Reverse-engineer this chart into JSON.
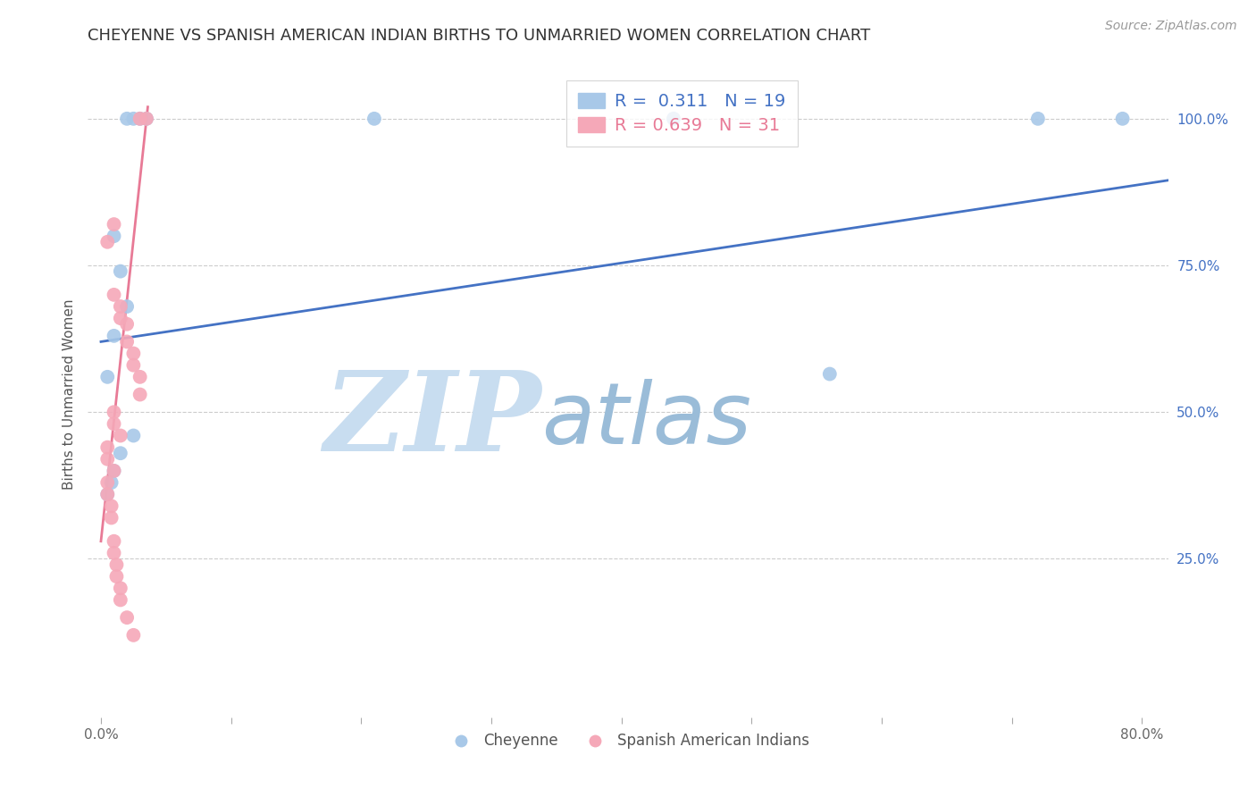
{
  "title": "CHEYENNE VS SPANISH AMERICAN INDIAN BIRTHS TO UNMARRIED WOMEN CORRELATION CHART",
  "source": "Source: ZipAtlas.com",
  "ylabel": "Births to Unmarried Women",
  "x_ticks": [
    0.0,
    0.1,
    0.2,
    0.3,
    0.4,
    0.5,
    0.6,
    0.7,
    0.8
  ],
  "x_tick_labels": [
    "0.0%",
    "",
    "",
    "",
    "",
    "",
    "",
    "",
    "80.0%"
  ],
  "y_ticks_right": [
    0.0,
    0.25,
    0.5,
    0.75,
    1.0
  ],
  "y_tick_labels_right": [
    "",
    "25.0%",
    "50.0%",
    "75.0%",
    "100.0%"
  ],
  "xlim": [
    -0.01,
    0.82
  ],
  "ylim": [
    -0.02,
    1.08
  ],
  "cheyenne_x": [
    0.02,
    0.025,
    0.03,
    0.035,
    0.21,
    0.44,
    0.72,
    0.785,
    0.01,
    0.015,
    0.02,
    0.01,
    0.005,
    0.56,
    0.008,
    0.005,
    0.01,
    0.015,
    0.025
  ],
  "cheyenne_y": [
    1.0,
    1.0,
    1.0,
    1.0,
    1.0,
    1.0,
    1.0,
    1.0,
    0.8,
    0.74,
    0.68,
    0.63,
    0.56,
    0.565,
    0.38,
    0.36,
    0.4,
    0.43,
    0.46
  ],
  "spanish_x": [
    0.03,
    0.035,
    0.01,
    0.005,
    0.01,
    0.015,
    0.015,
    0.02,
    0.02,
    0.025,
    0.025,
    0.03,
    0.03,
    0.01,
    0.01,
    0.015,
    0.005,
    0.005,
    0.01,
    0.005,
    0.005,
    0.008,
    0.008,
    0.01,
    0.01,
    0.012,
    0.012,
    0.015,
    0.015,
    0.02,
    0.025
  ],
  "spanish_y": [
    1.0,
    1.0,
    0.82,
    0.79,
    0.7,
    0.68,
    0.66,
    0.65,
    0.62,
    0.6,
    0.58,
    0.56,
    0.53,
    0.5,
    0.48,
    0.46,
    0.44,
    0.42,
    0.4,
    0.38,
    0.36,
    0.34,
    0.32,
    0.28,
    0.26,
    0.24,
    0.22,
    0.2,
    0.18,
    0.15,
    0.12
  ],
  "blue_line_x": [
    0.0,
    0.82
  ],
  "blue_line_y": [
    0.62,
    0.895
  ],
  "pink_line_x": [
    0.0,
    0.036
  ],
  "pink_line_y": [
    0.28,
    1.02
  ],
  "cheyenne_color": "#a8c8e8",
  "spanish_color": "#f5a8b8",
  "blue_line_color": "#4472c4",
  "pink_line_color": "#e87a96",
  "r_cheyenne": "0.311",
  "n_cheyenne": "19",
  "r_spanish": "0.639",
  "n_spanish": "31",
  "legend_cheyenne": "Cheyenne",
  "legend_spanish": "Spanish American Indians",
  "watermark_zip": "ZIP",
  "watermark_atlas": "atlas",
  "watermark_zip_color": "#c8ddf0",
  "watermark_atlas_color": "#9abcd8",
  "grid_color": "#cccccc",
  "title_fontsize": 13,
  "axis_label_fontsize": 11,
  "tick_fontsize": 11,
  "source_fontsize": 10
}
